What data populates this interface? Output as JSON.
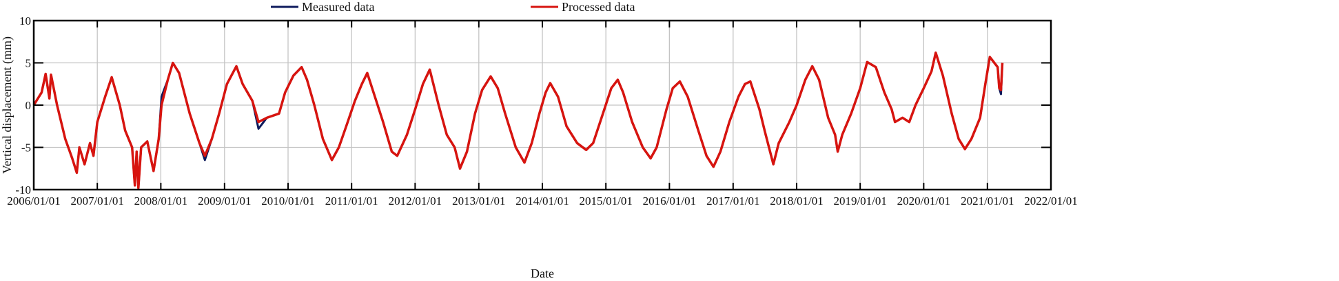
{
  "chart_data": {
    "type": "line",
    "title": "",
    "xlabel": "Date",
    "ylabel": "Vertical displacement (mm)",
    "xlim": [
      "2006/01/01",
      "2022/01/01"
    ],
    "ylim": [
      -10,
      10
    ],
    "x_ticks": [
      "2006/01/01",
      "2007/01/01",
      "2008/01/01",
      "2009/01/01",
      "2010/01/01",
      "2011/01/01",
      "2012/01/01",
      "2013/01/01",
      "2014/01/01",
      "2015/01/01",
      "2016/01/01",
      "2017/01/01",
      "2018/01/01",
      "2019/01/01",
      "2020/01/01",
      "2021/01/01",
      "2022/01/01"
    ],
    "y_ticks": [
      10,
      5,
      0,
      -5,
      -10
    ],
    "grid": true,
    "legend_position": "top-center",
    "x": [
      "2006-01-01",
      "2006-02-15",
      "2006-03-10",
      "2006-04-01",
      "2006-04-10",
      "2006-05-15",
      "2006-07-01",
      "2006-08-10",
      "2006-09-05",
      "2006-09-20",
      "2006-10-20",
      "2006-11-20",
      "2006-12-10",
      "2007-01-01",
      "2007-02-15",
      "2007-03-25",
      "2007-05-10",
      "2007-06-10",
      "2007-07-20",
      "2007-08-05",
      "2007-08-15",
      "2007-08-25",
      "2007-09-10",
      "2007-10-15",
      "2007-11-20",
      "2007-12-20",
      "2008-01-05",
      "2008-02-10",
      "2008-03-10",
      "2008-04-15",
      "2008-06-15",
      "2008-08-10",
      "2008-09-10",
      "2008-10-20",
      "2008-12-01",
      "2009-01-15",
      "2009-03-10",
      "2009-04-15",
      "2009-06-10",
      "2009-07-15",
      "2009-09-01",
      "2009-11-10",
      "2009-12-15",
      "2010-02-01",
      "2010-03-20",
      "2010-04-20",
      "2010-06-01",
      "2010-07-20",
      "2010-09-10",
      "2010-10-20",
      "2010-12-01",
      "2011-01-20",
      "2011-03-01",
      "2011-04-01",
      "2011-05-15",
      "2011-07-01",
      "2011-08-20",
      "2011-09-20",
      "2011-11-15",
      "2012-01-01",
      "2012-02-15",
      "2012-03-25",
      "2012-05-15",
      "2012-07-01",
      "2012-08-15",
      "2012-09-15",
      "2012-10-25",
      "2012-12-10",
      "2013-01-20",
      "2013-03-10",
      "2013-04-20",
      "2013-06-01",
      "2013-08-01",
      "2013-09-20",
      "2013-11-01",
      "2013-12-15",
      "2014-01-20",
      "2014-02-15",
      "2014-04-01",
      "2014-05-20",
      "2014-07-20",
      "2014-09-10",
      "2014-10-20",
      "2014-12-15",
      "2015-02-01",
      "2015-03-10",
      "2015-04-10",
      "2015-06-01",
      "2015-08-01",
      "2015-09-15",
      "2015-10-20",
      "2015-12-15",
      "2016-01-20",
      "2016-03-01",
      "2016-04-15",
      "2016-06-15",
      "2016-08-01",
      "2016-09-10",
      "2016-10-20",
      "2016-12-10",
      "2017-02-01",
      "2017-03-10",
      "2017-04-10",
      "2017-06-01",
      "2017-07-01",
      "2017-08-20",
      "2017-09-20",
      "2017-11-20",
      "2018-01-01",
      "2018-02-20",
      "2018-04-01",
      "2018-05-10",
      "2018-07-01",
      "2018-08-10",
      "2018-08-25",
      "2018-09-20",
      "2018-11-10",
      "2019-01-01",
      "2019-02-10",
      "2019-04-01",
      "2019-05-20",
      "2019-07-01",
      "2019-07-20",
      "2019-09-01",
      "2019-10-10",
      "2019-11-15",
      "2020-01-01",
      "2020-02-15",
      "2020-03-10",
      "2020-04-20",
      "2020-06-10",
      "2020-07-20",
      "2020-08-25",
      "2020-10-01",
      "2020-11-20",
      "2020-12-20",
      "2021-01-15",
      "2021-02-10",
      "2021-03-01",
      "2021-03-10",
      "2021-03-20",
      "2021-03-28"
    ],
    "series": [
      {
        "name": "Measured data",
        "color": "#0d1a5c",
        "values": [
          0,
          1.5,
          3.7,
          0.8,
          3.6,
          0,
          -4,
          -6.3,
          -8,
          -5,
          -7,
          -4.5,
          -6,
          -2,
          1,
          3.3,
          0,
          -3,
          -5,
          -9.5,
          -5.5,
          -9.8,
          -5,
          -4.3,
          -7.8,
          -4,
          1.0,
          3,
          5,
          3.8,
          -1,
          -4.5,
          -6.5,
          -4,
          -1,
          2.5,
          4.6,
          2.5,
          0.5,
          -2.8,
          -1.5,
          -1,
          1.5,
          3.5,
          4.5,
          3,
          0,
          -4,
          -6.5,
          -5,
          -2.5,
          0.5,
          2.5,
          3.8,
          1,
          -2,
          -5.5,
          -6,
          -3.5,
          -0.5,
          2.5,
          4.2,
          0,
          -3.5,
          -5,
          -7.5,
          -5.5,
          -1,
          1.8,
          3.4,
          2,
          -1,
          -5,
          -6.8,
          -4.5,
          -1,
          1.5,
          2.6,
          1,
          -2.5,
          -4.5,
          -5.3,
          -4.5,
          -1,
          2,
          3,
          1.5,
          -2,
          -5,
          -6.3,
          -5,
          -0.5,
          2,
          2.8,
          1,
          -3,
          -6,
          -7.3,
          -5.5,
          -2,
          1,
          2.5,
          2.8,
          -0.5,
          -3,
          -7,
          -4.5,
          -2,
          0,
          3,
          4.6,
          3,
          -1.5,
          -3.5,
          -5.5,
          -3.5,
          -1,
          2,
          5.1,
          4.5,
          1.5,
          -0.5,
          -2,
          -1.5,
          -2,
          0,
          2,
          4,
          6.2,
          3.5,
          -1,
          -4,
          -5.2,
          -4,
          -1.5,
          2.5,
          5.7,
          5,
          4.5,
          2,
          1.3,
          5
        ]
      },
      {
        "name": "Processed data",
        "color": "#d7140f",
        "values": [
          0,
          1.5,
          3.7,
          0.8,
          3.6,
          0,
          -4,
          -6.3,
          -8,
          -5,
          -7,
          -4.5,
          -6,
          -2,
          1,
          3.3,
          0,
          -3,
          -5,
          -9.5,
          -5.5,
          -9.8,
          -5,
          -4.3,
          -7.8,
          -4,
          0,
          3,
          5,
          3.8,
          -1,
          -4.5,
          -6,
          -4,
          -1,
          2.5,
          4.6,
          2.5,
          0.5,
          -2,
          -1.5,
          -1,
          1.5,
          3.5,
          4.5,
          3,
          0,
          -4,
          -6.5,
          -5,
          -2.5,
          0.5,
          2.5,
          3.8,
          1,
          -2,
          -5.5,
          -6,
          -3.5,
          -0.5,
          2.5,
          4.2,
          0,
          -3.5,
          -5,
          -7.5,
          -5.5,
          -1,
          1.8,
          3.4,
          2,
          -1,
          -5,
          -6.8,
          -4.5,
          -1,
          1.5,
          2.6,
          1,
          -2.5,
          -4.5,
          -5.3,
          -4.5,
          -1,
          2,
          3,
          1.5,
          -2,
          -5,
          -6.3,
          -5,
          -0.5,
          2,
          2.8,
          1,
          -3,
          -6,
          -7.3,
          -5.5,
          -2,
          1,
          2.5,
          2.8,
          -0.5,
          -3,
          -7,
          -4.5,
          -2,
          0,
          3,
          4.6,
          3,
          -1.5,
          -3.5,
          -5.5,
          -3.5,
          -1,
          2,
          5.1,
          4.5,
          1.5,
          -0.5,
          -2,
          -1.5,
          -2,
          0,
          2,
          4,
          6.2,
          3.5,
          -1,
          -4,
          -5.2,
          -4,
          -1.5,
          2.5,
          5.7,
          5,
          4.5,
          2,
          1.8,
          5
        ]
      }
    ]
  }
}
